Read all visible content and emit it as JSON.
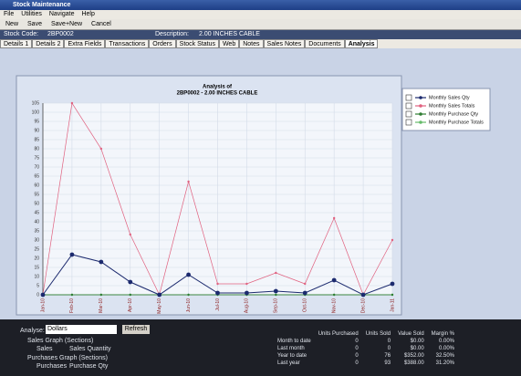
{
  "window": {
    "title": "Stock Maintenance"
  },
  "menu": [
    "File",
    "Utilities",
    "Navigate",
    "Help"
  ],
  "toolbar": [
    "New",
    "Save",
    "Save+New",
    "Cancel"
  ],
  "info": {
    "code_label": "Stock Code:",
    "code": "2BP0002",
    "desc_label": "Description:",
    "desc": "2.00 INCHES CABLE"
  },
  "tabs": [
    "Details 1",
    "Details 2",
    "Extra Fields",
    "Transactions",
    "Orders",
    "Stock Status",
    "Web",
    "Notes",
    "Sales Notes",
    "Documents",
    "Analysis"
  ],
  "chart_data": {
    "type": "line",
    "title": "Analysis of",
    "subtitle": "2BP0002 - 2.00 INCHES CABLE",
    "categories": [
      "Jan-10",
      "Feb-10",
      "Mar-10",
      "Apr-10",
      "May-10",
      "Jun-10",
      "Jul-10",
      "Aug-10",
      "Sep-10",
      "Oct-10",
      "Nov-10",
      "Dec-10",
      "Jan-11"
    ],
    "ylim": [
      0,
      105
    ],
    "yticks": [
      0,
      5,
      10,
      15,
      20,
      25,
      30,
      35,
      40,
      45,
      50,
      55,
      60,
      65,
      70,
      75,
      80,
      85,
      90,
      95,
      100,
      105
    ],
    "grid": true,
    "legend": "top-right",
    "series": [
      {
        "name": "Monthly Sales Qty",
        "color": "#1c2a6e",
        "values": [
          0,
          22,
          18,
          7,
          0,
          11,
          1,
          1,
          2,
          1,
          8,
          0,
          6
        ]
      },
      {
        "name": "Monthly Sales Totals",
        "color": "#e0607e",
        "values": [
          0,
          105,
          80,
          33,
          0,
          62,
          6,
          6,
          12,
          6,
          42,
          0,
          30
        ]
      },
      {
        "name": "Monthly Purchase Qty",
        "color": "#2e7d32",
        "values": [
          0,
          0,
          0,
          0,
          0,
          0,
          0,
          0,
          0,
          0,
          0,
          0,
          0
        ]
      },
      {
        "name": "Monthly Purchase Totals",
        "color": "#66bb6a",
        "values": [
          0,
          0,
          0,
          0,
          0,
          0,
          0,
          0,
          0,
          0,
          0,
          0,
          0
        ]
      }
    ]
  },
  "controls": {
    "analyse_label": "Analyse:",
    "analyse_value": "Dollars",
    "refresh": "Refresh",
    "sales_group": "Sales Graph (Sections)",
    "sales_opts": [
      "Sales",
      "Sales Quantity"
    ],
    "purch_group": "Purchases Graph (Sections)",
    "purch_opts": [
      "Purchases",
      "Purchase Qty"
    ]
  },
  "table": {
    "header": [
      "",
      "Units Purchased",
      "Units Sold",
      "Value Sold",
      "Margin %"
    ],
    "rows": [
      [
        "Month to date",
        "0",
        "0",
        "$0.00",
        "0.00%"
      ],
      [
        "Last month",
        "0",
        "0",
        "$0.00",
        "0.00%"
      ],
      [
        "Year to date",
        "0",
        "76",
        "$352.00",
        "32.50%"
      ],
      [
        "Last year",
        "0",
        "93",
        "$388.00",
        "31.20%"
      ]
    ]
  }
}
